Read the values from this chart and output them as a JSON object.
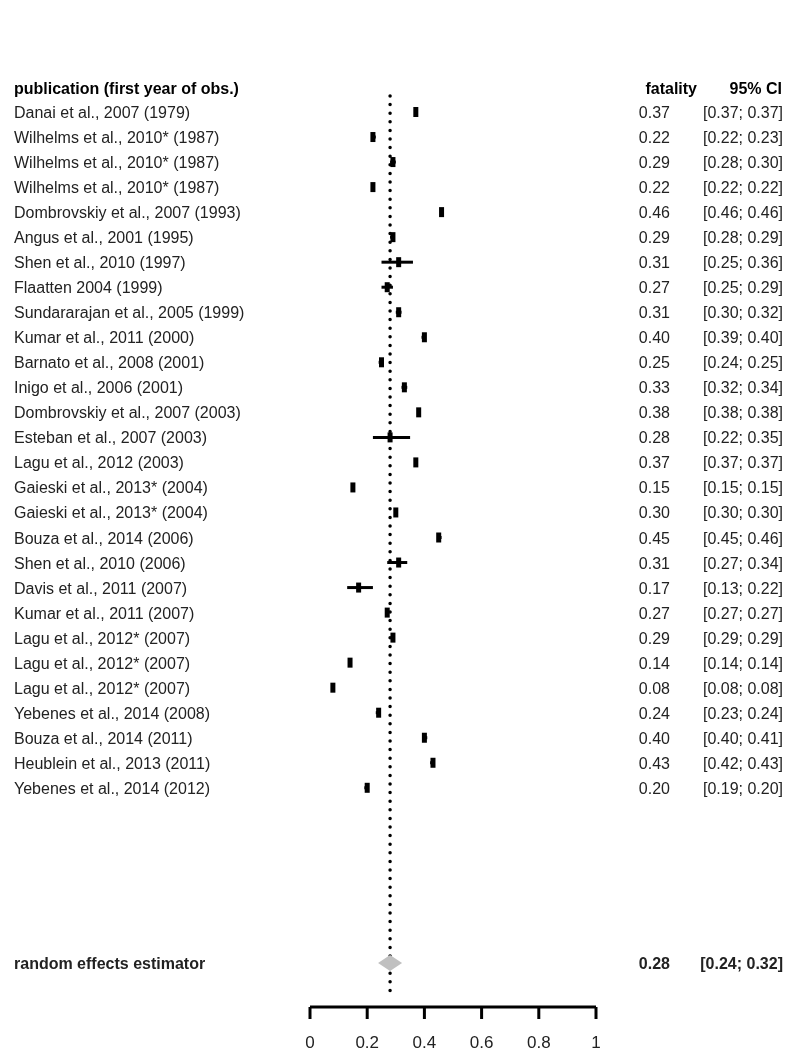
{
  "chart_data": {
    "type": "scatter",
    "orientation": "horizontal",
    "ylabel": "publication (first year of obs.)",
    "categories": [
      "Danai et al., 2007 (1979)",
      "Wilhelms et al., 2010* (1987)",
      "Wilhelms et al., 2010* (1987)",
      "Wilhelms et al., 2010* (1987)",
      "Dombrovskiy et al., 2007 (1993)",
      "Angus et al., 2001 (1995)",
      "Shen et al., 2010 (1997)",
      "Flaatten 2004 (1999)",
      "Sundararajan et al., 2005 (1999)",
      "Kumar et al., 2011 (2000)",
      "Barnato et al., 2008 (2001)",
      "Inigo et al., 2006 (2001)",
      "Dombrovskiy et al., 2007 (2003)",
      "Esteban et al., 2007 (2003)",
      "Lagu et al., 2012 (2003)",
      "Gaieski et al., 2013* (2004)",
      "Gaieski et al., 2013* (2004)",
      "Bouza et al., 2014 (2006)",
      "Shen et al., 2010 (2006)",
      "Davis et al., 2011 (2007)",
      "Kumar et al., 2011 (2007)",
      "Lagu et al., 2012* (2007)",
      "Lagu et al., 2012* (2007)",
      "Lagu et al., 2012* (2007)",
      "Yebenes et al., 2014 (2008)",
      "Bouza et al., 2014 (2011)",
      "Heublein et al., 2013 (2011)",
      "Yebenes et al., 2014 (2012)",
      null,
      null,
      null,
      null,
      null,
      null,
      "random effects estimator"
    ],
    "series": [
      {
        "color": "#000000",
        "marker": "square",
        "values": [
          0.37,
          0.22,
          0.29,
          0.22,
          0.46,
          0.29,
          0.31,
          0.27,
          0.31,
          0.4,
          0.25,
          0.33,
          0.38,
          0.28,
          0.37,
          0.15,
          0.3,
          0.45,
          0.31,
          0.17,
          0.27,
          0.29,
          0.14,
          0.08,
          0.24,
          0.4,
          0.43,
          0.2,
          null,
          null,
          null,
          null,
          null,
          null,
          null
        ],
        "errors": [
          [
            0.37,
            0.37
          ],
          [
            0.22,
            0.23
          ],
          [
            0.28,
            0.3
          ],
          [
            0.22,
            0.22
          ],
          [
            0.46,
            0.46
          ],
          [
            0.28,
            0.29
          ],
          [
            0.25,
            0.36
          ],
          [
            0.25,
            0.29
          ],
          [
            0.3,
            0.32
          ],
          [
            0.39,
            0.4
          ],
          [
            0.24,
            0.25
          ],
          [
            0.32,
            0.34
          ],
          [
            0.38,
            0.38
          ],
          [
            0.22,
            0.35
          ],
          [
            0.37,
            0.37
          ],
          [
            0.15,
            0.15
          ],
          [
            0.3,
            0.3
          ],
          [
            0.45,
            0.46
          ],
          [
            0.27,
            0.34
          ],
          [
            0.13,
            0.22
          ],
          [
            0.27,
            0.27
          ],
          [
            0.29,
            0.29
          ],
          [
            0.14,
            0.14
          ],
          [
            0.08,
            0.08
          ],
          [
            0.23,
            0.24
          ],
          [
            0.4,
            0.41
          ],
          [
            0.42,
            0.43
          ],
          [
            0.19,
            0.2
          ],
          null,
          null,
          null,
          null,
          null,
          null,
          null
        ],
        "value_labels": [
          "0.37 [0.37; 0.37]",
          "0.22 [0.22; 0.23]",
          "0.29 [0.28; 0.30]",
          "0.22 [0.22; 0.22]",
          "0.46 [0.46; 0.46]",
          "0.29 [0.28; 0.29]",
          "0.31 [0.25; 0.36]",
          "0.27 [0.25; 0.29]",
          "0.31 [0.30; 0.32]",
          "0.40 [0.39; 0.40]",
          "0.25 [0.24; 0.25]",
          "0.33 [0.32; 0.34]",
          "0.38 [0.38; 0.38]",
          "0.28 [0.22; 0.35]",
          "0.37 [0.37; 0.37]",
          "0.15 [0.15; 0.15]",
          "0.30 [0.30; 0.30]",
          "0.45 [0.45; 0.46]",
          "0.31 [0.27; 0.34]",
          "0.17 [0.13; 0.22]",
          "0.27 [0.27; 0.27]",
          "0.29 [0.29; 0.29]",
          "0.14 [0.14; 0.14]",
          "0.08 [0.08; 0.08]",
          "0.24 [0.23; 0.24]",
          "0.40 [0.40; 0.41]",
          "0.43 [0.42; 0.43]",
          "0.20 [0.19; 0.20]",
          null,
          null,
          null,
          null,
          null,
          null,
          null
        ]
      },
      {
        "color": "#c0c0c0",
        "marker": "diamond",
        "values": [
          null,
          null,
          null,
          null,
          null,
          null,
          null,
          null,
          null,
          null,
          null,
          null,
          null,
          null,
          null,
          null,
          null,
          null,
          null,
          null,
          null,
          null,
          null,
          null,
          null,
          null,
          null,
          null,
          null,
          null,
          null,
          null,
          null,
          null,
          0.28
        ],
        "value_labels": [
          null,
          null,
          null,
          null,
          null,
          null,
          null,
          null,
          null,
          null,
          null,
          null,
          null,
          null,
          null,
          null,
          null,
          null,
          null,
          null,
          null,
          null,
          null,
          null,
          null,
          null,
          null,
          null,
          null,
          null,
          null,
          null,
          null,
          null,
          "0.28 [0.24; 0.32]"
        ]
      }
    ],
    "xlim": [
      0,
      1
    ],
    "xticks": [
      0,
      0.2,
      0.4,
      0.6,
      0.8,
      1
    ],
    "ref_lines": [
      {
        "axis": "x",
        "value": 0.28,
        "line_style": "dotted",
        "color": "#000000"
      }
    ],
    "annotations": [
      "fatality",
      "95% CI"
    ],
    "grid": false
  }
}
